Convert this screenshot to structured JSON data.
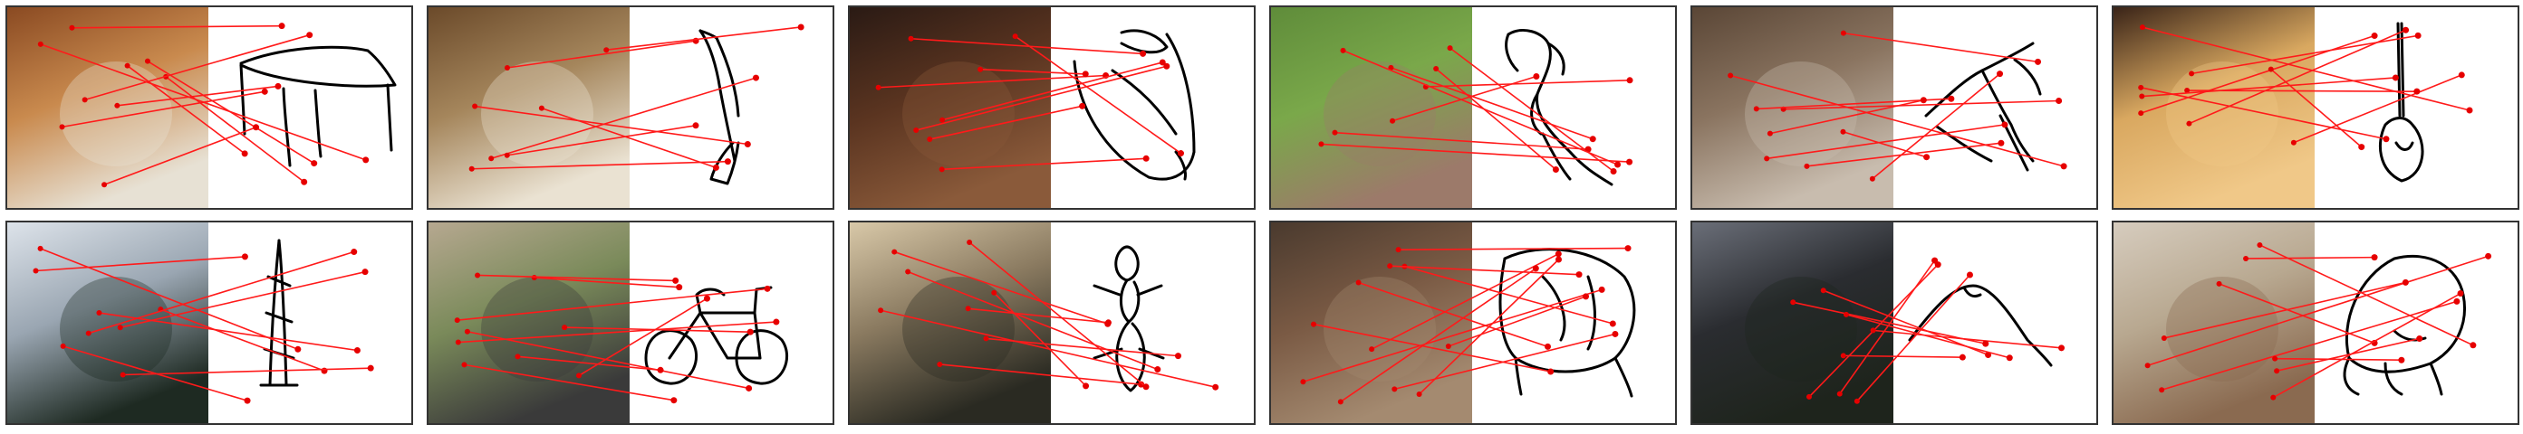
{
  "figure": {
    "rows": 2,
    "columns": 6,
    "match_line_color": "#ff1a1a",
    "keypoint_color": "#e60000",
    "sketch_stroke_color": "#000000",
    "panel_border_color": "#333333"
  },
  "panels": [
    {
      "subject": "dining-table",
      "photo_colors": [
        "#8a4a22",
        "#c98a4e",
        "#e7e1d4"
      ],
      "sketch_icon": "table-sketch-icon",
      "match_count": 9
    },
    {
      "subject": "axe",
      "photo_colors": [
        "#6b4a2a",
        "#a5865c",
        "#eae2d2"
      ],
      "sketch_icon": "axe-sketch-icon",
      "match_count": 7
    },
    {
      "subject": "alarm-clock",
      "photo_colors": [
        "#2a1a14",
        "#5a3420",
        "#8a5a3a"
      ],
      "sketch_icon": "alarm-clock-sketch-icon",
      "match_count": 8
    },
    {
      "subject": "kangaroo",
      "photo_colors": [
        "#5f8c3a",
        "#7aa84a",
        "#9c7a6a"
      ],
      "sketch_icon": "kangaroo-sketch-icon",
      "match_count": 8
    },
    {
      "subject": "trumpet",
      "photo_colors": [
        "#5a4636",
        "#8a7460",
        "#c8bcae"
      ],
      "sketch_icon": "trumpet-sketch-icon",
      "match_count": 9
    },
    {
      "subject": "acoustic-guitar",
      "photo_colors": [
        "#3a2418",
        "#d9a860",
        "#f0c888"
      ],
      "sketch_icon": "guitar-sketch-icon",
      "match_count": 9
    },
    {
      "subject": "tree",
      "photo_colors": [
        "#dde3ea",
        "#9aa6b2",
        "#1e2a22"
      ],
      "sketch_icon": "tree-sketch-icon",
      "match_count": 8
    },
    {
      "subject": "bicycle",
      "photo_colors": [
        "#b6a890",
        "#7a8a5a",
        "#3a3a3a"
      ],
      "sketch_icon": "bicycle-sketch-icon",
      "match_count": 9
    },
    {
      "subject": "ant",
      "photo_colors": [
        "#d8c8a8",
        "#8a7a60",
        "#2a2a22"
      ],
      "sketch_icon": "ant-sketch-icon",
      "match_count": 8
    },
    {
      "subject": "sheep",
      "photo_colors": [
        "#4a3a2e",
        "#7a5a44",
        "#a48a70"
      ],
      "sketch_icon": "sheep-sketch-icon",
      "match_count": 11
    },
    {
      "subject": "volcano",
      "photo_colors": [
        "#6a6e78",
        "#2a2c30",
        "#1e241c"
      ],
      "sketch_icon": "volcano-sketch-icon",
      "match_count": 8
    },
    {
      "subject": "hermit-crab",
      "photo_colors": [
        "#d6ccbe",
        "#b8a890",
        "#8a6a50"
      ],
      "sketch_icon": "hermit-crab-sketch-icon",
      "match_count": 9
    }
  ]
}
